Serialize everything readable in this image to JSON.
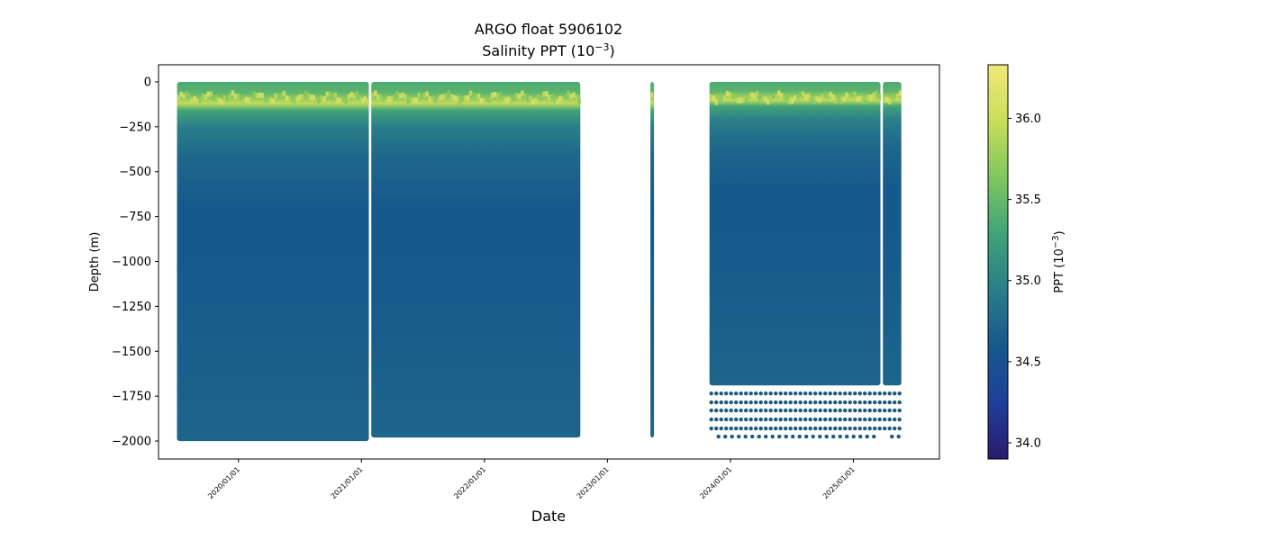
{
  "chart_data": {
    "type": "heatmap",
    "title_line1": "ARGO float 5906102",
    "title_line2": "Salinity PPT (10",
    "title_line2_sup": "−3",
    "title_line2_end": ")",
    "xlabel": "Date",
    "ylabel": "Depth (m)",
    "colorbar_label": "PPT (10",
    "colorbar_label_sup": "−3",
    "colorbar_label_end": ")",
    "x_ticks": [
      "2020/01/01",
      "2021/01/01",
      "2022/01/01",
      "2023/01/01",
      "2024/01/01",
      "2025/01/01"
    ],
    "x_tick_years": [
      2020,
      2021,
      2022,
      2023,
      2024,
      2025
    ],
    "xlim_years": [
      2019.35,
      2025.7
    ],
    "y_ticks": [
      0,
      -250,
      -500,
      -750,
      -1000,
      -1250,
      -1500,
      -1750,
      -2000
    ],
    "y_tick_labels": [
      "0",
      "−250",
      "−500",
      "−750",
      "−1000",
      "−1250",
      "−1500",
      "−1750",
      "−2000"
    ],
    "ylim": [
      -2100,
      95
    ],
    "color_range": [
      33.9,
      36.33
    ],
    "colorbar_ticks": [
      34.0,
      34.5,
      35.0,
      35.5,
      36.0
    ],
    "colorbar_tick_labels": [
      "34.0",
      "34.5",
      "35.0",
      "35.5",
      "36.0"
    ],
    "colormap": [
      "#2a1a6e",
      "#1f3f9a",
      "#16588c",
      "#2a7d8a",
      "#40a378",
      "#7fc65f",
      "#c8de5a",
      "#f2e77a"
    ],
    "segments": [
      {
        "start": 2019.5,
        "end": 2021.06,
        "max_depth": -2000
      },
      {
        "start": 2021.08,
        "end": 2022.78,
        "max_depth": -1980
      },
      {
        "start": 2023.35,
        "end": 2023.37,
        "max_depth": -1980
      },
      {
        "start": 2023.83,
        "end": 2025.22,
        "max_depth": -1690
      },
      {
        "start": 2025.24,
        "end": 2025.39,
        "max_depth": -1690
      }
    ],
    "deep_sample_depths": [
      -1735,
      -1785,
      -1830,
      -1880,
      -1930
    ],
    "deepest_sample_depth": -1975,
    "profile_gap_year": 2021.07,
    "profile_gap_depth": -1310,
    "salinity_profile": [
      {
        "depth": 0,
        "value": 35.35
      },
      {
        "depth": -60,
        "value": 35.45
      },
      {
        "depth": -120,
        "value": 35.95
      },
      {
        "depth": -160,
        "value": 35.3
      },
      {
        "depth": -250,
        "value": 34.95
      },
      {
        "depth": -400,
        "value": 34.75
      },
      {
        "depth": -700,
        "value": 34.6
      },
      {
        "depth": -1200,
        "value": 34.62
      },
      {
        "depth": -2000,
        "value": 34.72
      }
    ]
  }
}
